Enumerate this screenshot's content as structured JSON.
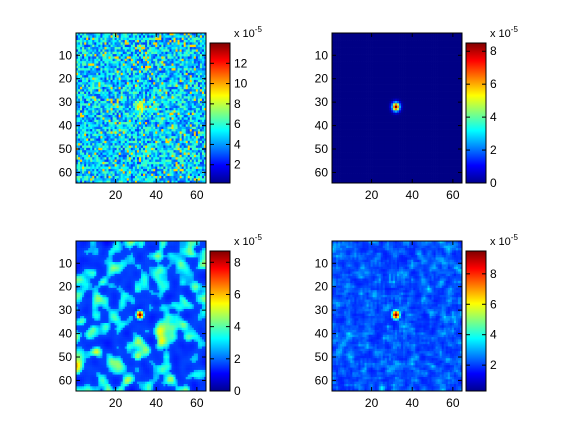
{
  "chart_data": [
    {
      "type": "heatmap",
      "panel": "top-left",
      "description": "noisy speckled field, mostly cyan/light-blue with scattered yellow pixels",
      "grid_size": 64,
      "xlim": [
        0.5,
        64.5
      ],
      "ylim": [
        0.5,
        64.5
      ],
      "x_ticks": [
        20,
        40,
        60
      ],
      "y_ticks": [
        10,
        20,
        30,
        40,
        50,
        60
      ],
      "clim": [
        0.2,
        14
      ],
      "colorbar": {
        "ticks": [
          2,
          4,
          6,
          8,
          10,
          12
        ],
        "exponent_label": "x 10",
        "exponent": "-5"
      },
      "peak": {
        "x": 32,
        "y": 32,
        "value": 9
      }
    },
    {
      "type": "heatmap",
      "panel": "top-right",
      "description": "uniform dark blue field with one small hot spot at the center",
      "grid_size": 64,
      "xlim": [
        0.5,
        64.5
      ],
      "ylim": [
        0.5,
        64.5
      ],
      "x_ticks": [
        20,
        40,
        60
      ],
      "y_ticks": [
        10,
        20,
        30,
        40,
        50,
        60
      ],
      "clim": [
        0,
        8.5
      ],
      "colorbar": {
        "ticks": [
          0,
          2,
          4,
          6,
          8
        ],
        "exponent_label": "x 10",
        "exponent": "-5"
      },
      "peak": {
        "x": 32,
        "y": 32,
        "value": 8.5
      }
    },
    {
      "type": "heatmap",
      "panel": "bottom-left",
      "description": "blue background with cyan/green blobs and a red spot at the center",
      "grid_size": 64,
      "xlim": [
        0.5,
        64.5
      ],
      "ylim": [
        0.5,
        64.5
      ],
      "x_ticks": [
        20,
        40,
        60
      ],
      "y_ticks": [
        10,
        20,
        30,
        40,
        50,
        60
      ],
      "clim": [
        0,
        8.7
      ],
      "colorbar": {
        "ticks": [
          0,
          2,
          4,
          6,
          8
        ],
        "exponent_label": "x 10",
        "exponent": "-5"
      },
      "peak": {
        "x": 32,
        "y": 32,
        "value": 8.7
      }
    },
    {
      "type": "heatmap",
      "panel": "bottom-right",
      "description": "blue field with faint light-blue texture and a red spot at the center",
      "grid_size": 64,
      "xlim": [
        0.5,
        64.5
      ],
      "ylim": [
        0.5,
        64.5
      ],
      "x_ticks": [
        20,
        40,
        60
      ],
      "y_ticks": [
        10,
        20,
        30,
        40,
        50,
        60
      ],
      "clim": [
        0.3,
        9.5
      ],
      "colorbar": {
        "ticks": [
          2,
          4,
          6,
          8
        ],
        "exponent_label": "x 10",
        "exponent": "-5"
      },
      "peak": {
        "x": 32,
        "y": 32,
        "value": 9.5
      }
    }
  ]
}
